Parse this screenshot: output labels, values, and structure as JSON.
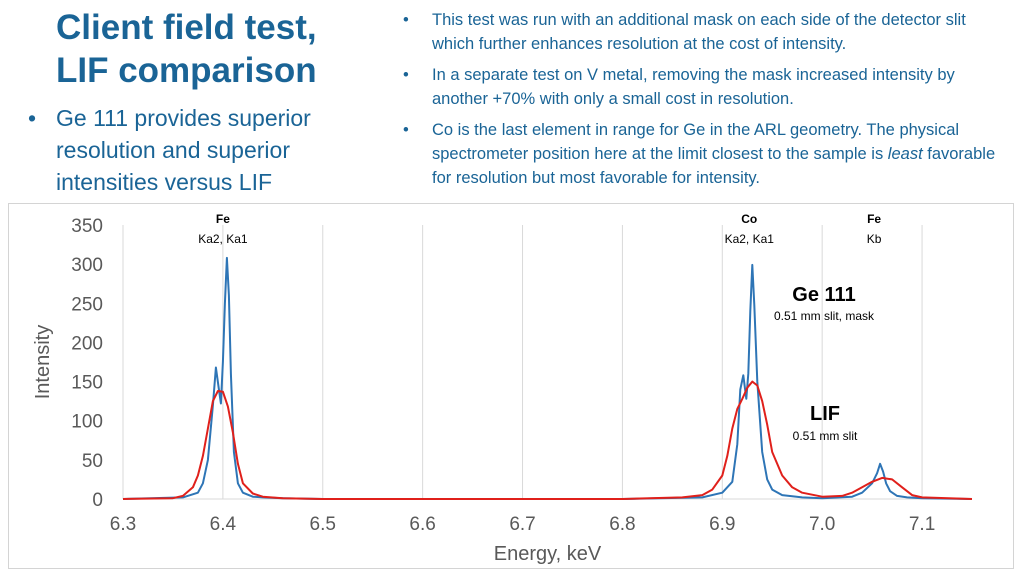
{
  "slide": {
    "title_line1": "Client field test,",
    "title_line2": "LIF comparison",
    "left_bullets": [
      "Ge 111 provides superior resolution and superior intensities versus LIF"
    ],
    "right_bullets": [
      {
        "before": "This test was run with an additional mask on each side of the detector slit which further enhances resolution at the cost of intensity.",
        "italic": "",
        "after": ""
      },
      {
        "before": "In a separate test on V metal, removing the mask increased intensity by another +70% with only a small cost in resolution.",
        "italic": "",
        "after": ""
      },
      {
        "before": "Co is the last element in range for Ge in the ARL geometry. The physical spectrometer position here at the limit closest to the sample is ",
        "italic": "least",
        "after": " favorable for resolution but most favorable for intensity."
      }
    ]
  },
  "colors": {
    "text_blue": "#1a6496",
    "ge_series": "#2e75b6",
    "lif_series": "#e0201b",
    "grid": "#d9d9d9",
    "axis_text": "#595959"
  },
  "chart_data": {
    "type": "line",
    "xlabel": "Energy, keV",
    "ylabel": "Intensity",
    "xlim": [
      6.3,
      7.15
    ],
    "ylim": [
      0,
      350
    ],
    "xticks": [
      "6.3",
      "6.4",
      "6.5",
      "6.6",
      "6.7",
      "6.8",
      "6.9",
      "7.0",
      "7.1"
    ],
    "yticks": [
      "0",
      "50",
      "100",
      "150",
      "200",
      "250",
      "300",
      "350"
    ],
    "grid": "vertical",
    "peak_labels": [
      {
        "element": "Fe",
        "lines": "Ka2, Ka1",
        "x": 6.4
      },
      {
        "element": "Co",
        "lines": "Ka2, Ka1",
        "x": 6.927
      },
      {
        "element": "Fe",
        "lines": "Kb",
        "x": 7.052
      }
    ],
    "series": [
      {
        "name": "Ge 111",
        "note": "0.51 mm slit, mask",
        "x": [
          6.3,
          6.36,
          6.375,
          6.38,
          6.385,
          6.39,
          6.393,
          6.396,
          6.398,
          6.4,
          6.402,
          6.404,
          6.406,
          6.408,
          6.411,
          6.415,
          6.42,
          6.43,
          6.44,
          6.46,
          6.5,
          6.8,
          6.88,
          6.9,
          6.91,
          6.915,
          6.918,
          6.921,
          6.924,
          6.926,
          6.928,
          6.93,
          6.932,
          6.935,
          6.94,
          6.945,
          6.95,
          6.96,
          6.98,
          7.0,
          7.03,
          7.04,
          7.05,
          7.055,
          7.058,
          7.061,
          7.064,
          7.068,
          7.075,
          7.085,
          7.1,
          7.15
        ],
        "y": [
          0,
          2,
          8,
          20,
          50,
          120,
          168,
          140,
          122,
          175,
          250,
          308,
          260,
          160,
          60,
          20,
          8,
          3,
          2,
          1,
          0,
          0,
          2,
          8,
          22,
          70,
          140,
          158,
          128,
          160,
          240,
          299,
          248,
          150,
          60,
          25,
          12,
          5,
          2,
          1,
          3,
          8,
          20,
          33,
          45,
          35,
          20,
          10,
          4,
          2,
          1,
          0
        ]
      },
      {
        "name": "LIF",
        "note": "0.51 mm slit",
        "x": [
          6.3,
          6.35,
          6.36,
          6.37,
          6.375,
          6.38,
          6.385,
          6.39,
          6.395,
          6.4,
          6.405,
          6.41,
          6.415,
          6.42,
          6.43,
          6.44,
          6.46,
          6.5,
          6.8,
          6.86,
          6.88,
          6.89,
          6.9,
          6.905,
          6.91,
          6.915,
          6.92,
          6.925,
          6.93,
          6.935,
          6.94,
          6.945,
          6.95,
          6.96,
          6.97,
          6.98,
          7.0,
          7.02,
          7.03,
          7.04,
          7.05,
          7.06,
          7.07,
          7.08,
          7.09,
          7.1,
          7.15
        ],
        "y": [
          0,
          1,
          4,
          15,
          30,
          55,
          90,
          125,
          138,
          137,
          118,
          85,
          45,
          20,
          7,
          3,
          1,
          0,
          0,
          2,
          5,
          12,
          30,
          55,
          90,
          115,
          128,
          142,
          150,
          145,
          125,
          95,
          60,
          30,
          15,
          8,
          3,
          4,
          8,
          15,
          22,
          27,
          25,
          15,
          5,
          2,
          0
        ]
      }
    ]
  }
}
